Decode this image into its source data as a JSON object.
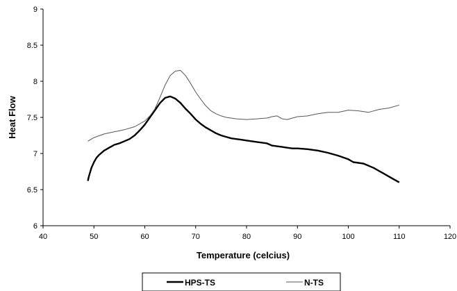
{
  "chart_data": {
    "type": "line",
    "title": "",
    "xlabel": "Temperature (celcius)",
    "ylabel": "Heat Flow",
    "xlim": [
      40,
      120
    ],
    "ylim": [
      6,
      9
    ],
    "xticks": [
      40,
      50,
      60,
      70,
      80,
      90,
      100,
      110,
      120
    ],
    "yticks": [
      6,
      6.5,
      7,
      7.5,
      8,
      8.5,
      9
    ],
    "grid": false,
    "legend_position": "bottom",
    "series": [
      {
        "name": "HPS-TS",
        "color": "#000000",
        "style": "thick",
        "x": [
          48.8,
          49,
          49.5,
          50,
          50.5,
          51,
          51.5,
          52,
          53,
          54,
          55,
          56,
          57,
          58,
          59,
          60,
          61,
          62,
          63,
          64,
          65,
          66,
          67,
          68,
          69,
          70,
          71,
          72,
          73,
          74,
          75,
          76,
          77,
          78,
          79,
          80,
          82,
          84,
          85,
          86,
          87,
          88,
          89,
          90,
          92,
          94,
          96,
          98,
          100,
          101,
          102,
          103,
          104,
          105,
          106,
          107,
          108,
          109,
          110
        ],
        "y": [
          6.62,
          6.68,
          6.8,
          6.88,
          6.94,
          6.98,
          7.01,
          7.04,
          7.08,
          7.12,
          7.14,
          7.17,
          7.2,
          7.25,
          7.32,
          7.4,
          7.5,
          7.6,
          7.7,
          7.77,
          7.79,
          7.76,
          7.7,
          7.62,
          7.55,
          7.47,
          7.41,
          7.36,
          7.32,
          7.28,
          7.25,
          7.23,
          7.21,
          7.2,
          7.19,
          7.18,
          7.16,
          7.14,
          7.11,
          7.1,
          7.09,
          7.08,
          7.07,
          7.07,
          7.06,
          7.04,
          7.01,
          6.97,
          6.92,
          6.88,
          6.87,
          6.86,
          6.83,
          6.8,
          6.76,
          6.72,
          6.68,
          6.64,
          6.6
        ]
      },
      {
        "name": "N-TS",
        "color": "#555555",
        "style": "thin",
        "x": [
          48.8,
          50,
          52,
          54,
          56,
          58,
          60,
          61,
          62,
          63,
          64,
          65,
          66,
          67,
          68,
          69,
          70,
          71,
          72,
          73,
          74,
          75,
          76,
          78,
          80,
          82,
          84,
          85,
          86,
          87,
          88,
          90,
          92,
          94,
          96,
          98,
          100,
          102,
          104,
          106,
          108,
          110
        ],
        "y": [
          7.17,
          7.22,
          7.27,
          7.3,
          7.33,
          7.37,
          7.45,
          7.52,
          7.62,
          7.78,
          7.95,
          8.08,
          8.14,
          8.15,
          8.08,
          7.97,
          7.85,
          7.75,
          7.66,
          7.59,
          7.55,
          7.52,
          7.5,
          7.48,
          7.47,
          7.48,
          7.49,
          7.51,
          7.52,
          7.48,
          7.47,
          7.51,
          7.52,
          7.55,
          7.57,
          7.57,
          7.6,
          7.59,
          7.57,
          7.61,
          7.63,
          7.67
        ]
      }
    ]
  }
}
